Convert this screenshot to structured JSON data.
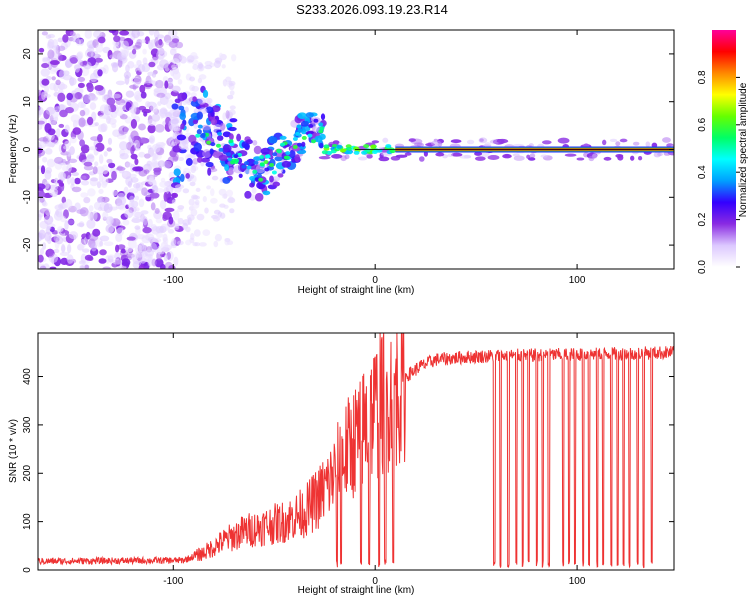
{
  "title": "S233.2026.093.19.23.R14",
  "chart_data": [
    {
      "type": "heatmap",
      "xlabel": "Height of straight line (km)",
      "ylabel": "Frequency (Hz)",
      "xlim": [
        -167,
        148
      ],
      "ylim": [
        -25,
        25
      ],
      "xticks": [
        -100,
        0,
        100
      ],
      "yticks": [
        -20,
        -10,
        0,
        10,
        20
      ],
      "colorbar": {
        "label": "Normalized spectral amplitude",
        "range": [
          0,
          1
        ],
        "ticks": [
          "0.0",
          "0.2",
          "0.4",
          "0.6",
          "0.8"
        ],
        "colors": [
          "#ffffff",
          "#dcc8ff",
          "#8a2be2",
          "#3300ff",
          "#00a0ff",
          "#00ffff",
          "#00ff66",
          "#66ff00",
          "#ffff00",
          "#ff8800",
          "#ff0000",
          "#ff0099"
        ]
      },
      "carrier": {
        "frequency_hz": 0,
        "x_start_km": 10,
        "x_end_km": 148
      },
      "regions": [
        {
          "name": "noise",
          "x_from_km": -167,
          "x_to_km": -100,
          "freq_spread_hz": 25
        },
        {
          "name": "scintillation",
          "x_from_km": -100,
          "x_to_km": -25,
          "freq_spread_hz": 10
        },
        {
          "name": "clean_signal",
          "x_from_km": -25,
          "x_to_km": 148,
          "freq_spread_hz": 1
        }
      ]
    },
    {
      "type": "line",
      "xlabel": "Height of straight line (km)",
      "ylabel": "SNR (10 * v/v)",
      "xlim": [
        -167,
        148
      ],
      "ylim": [
        0,
        490
      ],
      "xticks": [
        -100,
        0,
        100
      ],
      "yticks": [
        0,
        100,
        200,
        300,
        400
      ],
      "series": [
        {
          "name": "SNR",
          "color": "#ee3333",
          "profile_x": [
            -167,
            -95,
            -85,
            -75,
            -65,
            -55,
            -45,
            -35,
            -28,
            -22,
            -15,
            -8,
            0,
            8,
            15,
            22,
            30,
            45,
            60,
            90,
            120,
            148
          ],
          "profile_y": [
            18,
            20,
            35,
            60,
            80,
            90,
            100,
            120,
            150,
            185,
            240,
            280,
            330,
            370,
            400,
            420,
            435,
            440,
            443,
            445,
            447,
            450
          ],
          "dropouts_x": [
            -19,
            -17,
            -7,
            -3,
            2,
            5,
            9,
            59,
            62,
            66,
            70,
            73,
            76,
            80,
            83,
            86,
            93,
            96,
            99,
            103,
            106,
            110,
            113,
            117,
            120,
            123,
            126,
            130,
            133,
            137
          ]
        }
      ]
    }
  ]
}
